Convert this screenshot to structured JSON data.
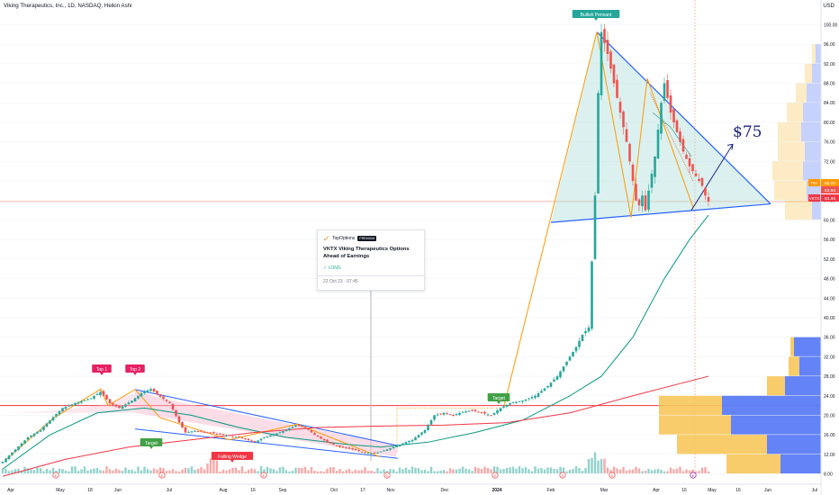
{
  "header": {
    "title": "Viking Therapeutics, Inc., 1D, NASDAQ, Heikin Ashi",
    "currency": "USD"
  },
  "annotation_card": {
    "author": "TopOptions",
    "badge": "PREMIUM",
    "headline": "VKTX Viking Therapeutics Options Ahead of Earnings",
    "direction": "✓ LONG",
    "timestamp": "22 Oct 23 · 07:45"
  },
  "colors": {
    "up": "#26a69a",
    "down": "#ef5350",
    "ma_green": "#089981",
    "ma_red": "#f23645",
    "pattern_blue": "#2962ff",
    "pattern_orange": "#ff9800",
    "pennant_fill": "#b2dfdb",
    "wedge_fill": "#f8bbd0",
    "target_arrow": "#1a237e",
    "vp_blue": "#5b7cf5",
    "vp_yellow": "#f7c65a"
  },
  "chart_data": {
    "type": "candlestick",
    "chart_style": "Heikin Ashi",
    "interval": "1D",
    "symbol": "VKTX",
    "exchange": "NASDAQ",
    "x_ticks": [
      "Apr",
      "May",
      "18",
      "Jun",
      "Jul",
      "Aug",
      "16",
      "Sep",
      "Oct",
      "17",
      "Nov",
      "Dec",
      "2024",
      "Feb",
      "Mar",
      "Apr",
      "16",
      "May",
      "16",
      "Jun",
      "Jul"
    ],
    "y_ticks": [
      "8.00",
      "12.00",
      "16.00",
      "20.00",
      "24.00",
      "28.00",
      "32.00",
      "36.00",
      "40.00",
      "44.00",
      "48.00",
      "52.00",
      "56.00",
      "60.00",
      "64.00",
      "68.00",
      "72.00",
      "76.00",
      "80.00",
      "84.00",
      "88.00",
      "92.00",
      "96.00",
      "100.00"
    ],
    "ylim": [
      7,
      101
    ],
    "scale": "linear",
    "price_labels": [
      {
        "tag": "Pre",
        "value": "66.00"
      },
      {
        "tag": "",
        "value": "63.85"
      },
      {
        "tag": "VKTX",
        "value": "63.85"
      }
    ],
    "pattern_labels": [
      {
        "text": "Top 1",
        "kind": "pink"
      },
      {
        "text": "Top 2",
        "kind": "pink"
      },
      {
        "text": "Target",
        "kind": "green"
      },
      {
        "text": "Falling Wedge",
        "kind": "red"
      },
      {
        "text": "Target",
        "kind": "green"
      },
      {
        "text": "Bullish Pennant",
        "kind": "teal"
      }
    ],
    "target_text": "$75",
    "horizontal_levels": [
      22,
      63.8
    ],
    "price_path": [
      [
        0,
        10.5
      ],
      [
        4,
        13
      ],
      [
        8,
        15.5
      ],
      [
        12,
        17
      ],
      [
        15,
        19
      ],
      [
        19,
        21.5
      ],
      [
        23,
        22.5
      ],
      [
        28,
        23.5
      ],
      [
        31,
        24.8
      ],
      [
        34,
        22.5
      ],
      [
        37,
        21.5
      ],
      [
        41,
        23
      ],
      [
        44,
        24.5
      ],
      [
        47,
        25.4
      ],
      [
        50,
        23.8
      ],
      [
        53,
        22.5
      ],
      [
        56,
        18.5
      ],
      [
        58,
        16.5
      ],
      [
        61,
        16.8
      ],
      [
        65,
        16.5
      ],
      [
        70,
        16
      ],
      [
        75,
        15.5
      ],
      [
        80,
        14.5
      ],
      [
        83,
        15.5
      ],
      [
        87,
        16.3
      ],
      [
        90,
        17
      ],
      [
        93,
        18
      ],
      [
        96,
        17.5
      ],
      [
        99,
        16
      ],
      [
        103,
        14.5
      ],
      [
        107,
        13.5
      ],
      [
        111,
        13
      ],
      [
        114,
        12.5
      ],
      [
        118,
        12.2
      ],
      [
        122,
        13
      ],
      [
        126,
        14
      ],
      [
        130,
        15
      ],
      [
        134,
        17
      ],
      [
        137,
        20
      ],
      [
        140,
        20.5
      ],
      [
        143,
        20
      ],
      [
        146,
        20.7
      ],
      [
        149,
        21
      ],
      [
        152,
        20.5
      ],
      [
        155,
        20
      ],
      [
        158,
        21.5
      ],
      [
        161,
        22.5
      ],
      [
        165,
        23
      ],
      [
        169,
        24
      ],
      [
        173,
        26
      ],
      [
        176,
        28
      ],
      [
        179,
        31
      ],
      [
        182,
        34
      ],
      [
        184,
        36.5
      ],
      [
        186,
        38
      ],
      [
        188,
        65
      ],
      [
        189,
        86
      ],
      [
        190,
        98.5
      ],
      [
        192,
        94
      ],
      [
        194,
        88
      ],
      [
        196,
        82
      ],
      [
        198,
        76
      ],
      [
        200,
        68
      ],
      [
        201,
        64
      ],
      [
        202,
        63
      ],
      [
        203,
        65
      ],
      [
        204,
        62
      ],
      [
        205,
        66
      ],
      [
        207,
        73
      ],
      [
        209,
        84
      ],
      [
        210,
        88
      ],
      [
        212,
        82
      ],
      [
        214,
        78
      ],
      [
        216,
        74
      ],
      [
        218,
        71
      ],
      [
        220,
        69
      ],
      [
        222,
        67
      ],
      [
        223,
        65
      ],
      [
        224,
        63.8
      ]
    ],
    "moving_averages": [
      {
        "color": "green",
        "points": [
          [
            0,
            9
          ],
          [
            15,
            16
          ],
          [
            30,
            20.5
          ],
          [
            45,
            21.5
          ],
          [
            60,
            20
          ],
          [
            75,
            17.5
          ],
          [
            90,
            15.5
          ],
          [
            110,
            14
          ],
          [
            120,
            13.5
          ],
          [
            135,
            14.5
          ],
          [
            150,
            16.5
          ],
          [
            165,
            19
          ],
          [
            180,
            24
          ],
          [
            190,
            28
          ],
          [
            200,
            36
          ],
          [
            210,
            48
          ],
          [
            218,
            56
          ],
          [
            224,
            61
          ]
        ]
      },
      {
        "color": "red",
        "points": [
          [
            0,
            7.5
          ],
          [
            20,
            11
          ],
          [
            40,
            13.5
          ],
          [
            60,
            15
          ],
          [
            80,
            16.5
          ],
          [
            100,
            17.5
          ],
          [
            120,
            17.8
          ],
          [
            140,
            18
          ],
          [
            160,
            18.5
          ],
          [
            180,
            20.5
          ],
          [
            200,
            24
          ],
          [
            215,
            26.5
          ],
          [
            224,
            28
          ]
        ]
      }
    ],
    "volume_profile_upper": [
      {
        "price": 98,
        "blue": 0,
        "yellow": 0
      },
      {
        "price": 94,
        "blue": 6,
        "yellow": 4
      },
      {
        "price": 90,
        "blue": 10,
        "yellow": 8
      },
      {
        "price": 86,
        "blue": 16,
        "yellow": 12
      },
      {
        "price": 82,
        "blue": 20,
        "yellow": 18
      },
      {
        "price": 78,
        "blue": 22,
        "yellow": 26
      },
      {
        "price": 74,
        "blue": 18,
        "yellow": 30
      },
      {
        "price": 70,
        "blue": 20,
        "yellow": 34
      },
      {
        "price": 66,
        "blue": 16,
        "yellow": 36
      },
      {
        "price": 62,
        "blue": 10,
        "yellow": 30
      }
    ],
    "volume_profile_lower": [
      {
        "price": 34,
        "blue": 30,
        "yellow": 4
      },
      {
        "price": 30,
        "blue": 24,
        "yellow": 12
      },
      {
        "price": 26,
        "blue": 40,
        "yellow": 20
      },
      {
        "price": 22,
        "blue": 110,
        "yellow": 70
      },
      {
        "price": 18,
        "blue": 100,
        "yellow": 80
      },
      {
        "price": 14,
        "blue": 60,
        "yellow": 100
      },
      {
        "price": 10,
        "blue": 45,
        "yellow": 60
      }
    ],
    "event_markers": [
      "E",
      "E",
      "E",
      "E",
      "E",
      "E",
      "E",
      "E"
    ]
  }
}
